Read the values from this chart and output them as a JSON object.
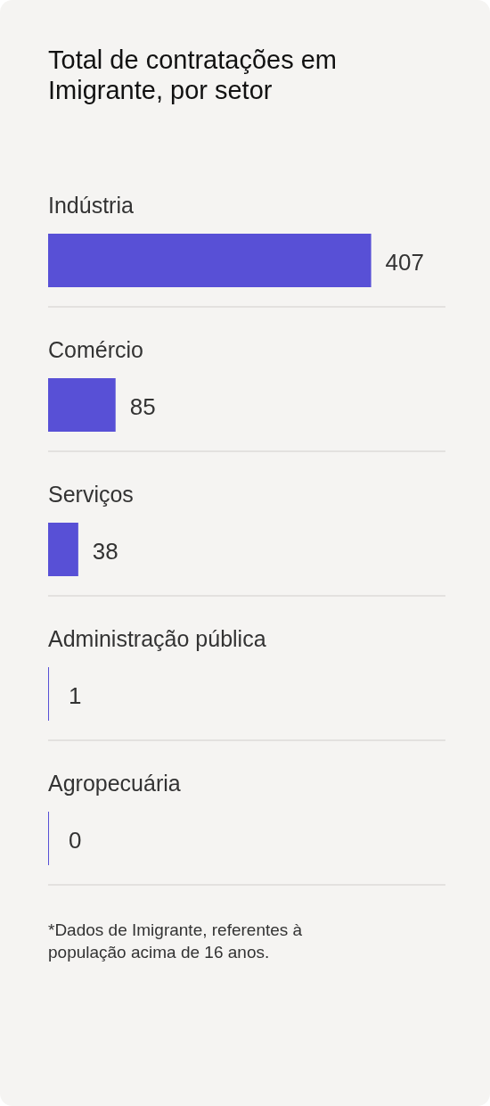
{
  "chart_data": {
    "type": "bar",
    "orientation": "horizontal",
    "title": "Total de contratações em Imigrante, por setor",
    "categories": [
      "Indústria",
      "Comércio",
      "Serviços",
      "Administração pública",
      "Agropecuária"
    ],
    "values": [
      407,
      85,
      38,
      1,
      0
    ],
    "color": "#5850d6",
    "data_labels": true,
    "grid": "y",
    "tick_labels": "y",
    "annotations": [
      "*Dados de Imigrante, referentes à população acima de 16 anos."
    ]
  }
}
